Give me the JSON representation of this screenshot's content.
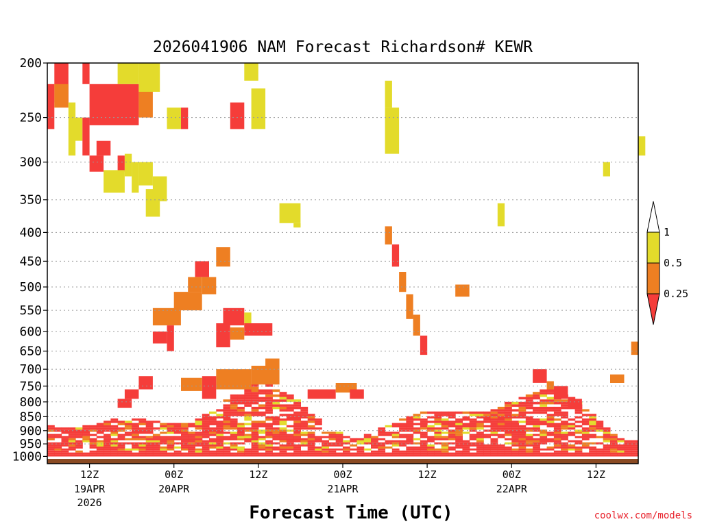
{
  "chart_data": {
    "type": "heatmap",
    "title": "2026041906 NAM Forecast Richardson# KEWR",
    "xlabel": "Forecast Time (UTC)",
    "ylabel": "",
    "y_unit": "hPa",
    "y_ticks": [
      200,
      250,
      300,
      350,
      400,
      450,
      500,
      550,
      600,
      650,
      700,
      750,
      800,
      850,
      900,
      950,
      1000
    ],
    "y_range": [
      200,
      1030
    ],
    "x_range_hours": [
      0,
      84
    ],
    "x_ticks": [
      {
        "hour": 6,
        "label": "12Z",
        "date": "19APR",
        "year": "2026"
      },
      {
        "hour": 18,
        "label": "00Z",
        "date": "20APR",
        "year": ""
      },
      {
        "hour": 30,
        "label": "12Z",
        "date": "",
        "year": ""
      },
      {
        "hour": 42,
        "label": "00Z",
        "date": "21APR",
        "year": ""
      },
      {
        "hour": 54,
        "label": "12Z",
        "date": "",
        "year": ""
      },
      {
        "hour": 66,
        "label": "00Z",
        "date": "22APR",
        "year": ""
      },
      {
        "hour": 78,
        "label": "12Z",
        "date": "",
        "year": ""
      }
    ],
    "legend": {
      "labels": [
        "1",
        "0.5",
        "0.25"
      ],
      "bins": [
        {
          "range": "> 1",
          "color": "#ffffff"
        },
        {
          "range": "0.5 - 1",
          "color": "#e3db2b"
        },
        {
          "range": "0.25 - 0.5",
          "color": "#ee7f22"
        },
        {
          "range": "< 0.25",
          "color": "#f53d3a"
        }
      ]
    },
    "ground_color": "#8a4a23",
    "cells": [
      {
        "t0": 1,
        "t1": 3,
        "p0": 200,
        "p1": 235,
        "bin": "low"
      },
      {
        "t0": 5,
        "t1": 6,
        "p0": 200,
        "p1": 218,
        "bin": "low"
      },
      {
        "t0": 0,
        "t1": 1,
        "p0": 218,
        "p1": 262,
        "bin": "low"
      },
      {
        "t0": 1,
        "t1": 3,
        "p0": 218,
        "p1": 240,
        "bin": "mid"
      },
      {
        "t0": 6,
        "t1": 13,
        "p0": 218,
        "p1": 258,
        "bin": "low"
      },
      {
        "t0": 3,
        "t1": 4,
        "p0": 235,
        "p1": 292,
        "bin": "hi"
      },
      {
        "t0": 4,
        "t1": 5,
        "p0": 250,
        "p1": 275,
        "bin": "hi"
      },
      {
        "t0": 5,
        "t1": 6,
        "p0": 250,
        "p1": 292,
        "bin": "low"
      },
      {
        "t0": 7,
        "t1": 9,
        "p0": 275,
        "p1": 292,
        "bin": "low"
      },
      {
        "t0": 6,
        "t1": 8,
        "p0": 292,
        "p1": 312,
        "bin": "low"
      },
      {
        "t0": 10,
        "t1": 11,
        "p0": 292,
        "p1": 312,
        "bin": "low"
      },
      {
        "t0": 10,
        "t1": 13,
        "p0": 200,
        "p1": 218,
        "bin": "hi"
      },
      {
        "t0": 13,
        "t1": 16,
        "p0": 200,
        "p1": 225,
        "bin": "hi"
      },
      {
        "t0": 13,
        "t1": 15,
        "p0": 225,
        "p1": 250,
        "bin": "mid"
      },
      {
        "t0": 17,
        "t1": 19,
        "p0": 240,
        "p1": 262,
        "bin": "hi"
      },
      {
        "t0": 19,
        "t1": 20,
        "p0": 240,
        "p1": 262,
        "bin": "low"
      },
      {
        "t0": 8,
        "t1": 11,
        "p0": 310,
        "p1": 340,
        "bin": "hi"
      },
      {
        "t0": 11,
        "t1": 12,
        "p0": 290,
        "p1": 318,
        "bin": "hi"
      },
      {
        "t0": 12,
        "t1": 13,
        "p0": 300,
        "p1": 340,
        "bin": "hi"
      },
      {
        "t0": 13,
        "t1": 15,
        "p0": 300,
        "p1": 330,
        "bin": "hi"
      },
      {
        "t0": 14,
        "t1": 16,
        "p0": 335,
        "p1": 375,
        "bin": "hi"
      },
      {
        "t0": 15,
        "t1": 17,
        "p0": 318,
        "p1": 352,
        "bin": "hi"
      },
      {
        "t0": 28,
        "t1": 30,
        "p0": 200,
        "p1": 215,
        "bin": "hi"
      },
      {
        "t0": 26,
        "t1": 28,
        "p0": 235,
        "p1": 262,
        "bin": "low"
      },
      {
        "t0": 29,
        "t1": 31,
        "p0": 222,
        "p1": 262,
        "bin": "hi"
      },
      {
        "t0": 33,
        "t1": 36,
        "p0": 355,
        "p1": 385,
        "bin": "hi"
      },
      {
        "t0": 35,
        "t1": 36,
        "p0": 385,
        "p1": 392,
        "bin": "hi"
      },
      {
        "t0": 48,
        "t1": 49,
        "p0": 215,
        "p1": 240,
        "bin": "hi"
      },
      {
        "t0": 48,
        "t1": 50,
        "p0": 240,
        "p1": 290,
        "bin": "hi"
      },
      {
        "t0": 64,
        "t1": 65,
        "p0": 355,
        "p1": 390,
        "bin": "hi"
      },
      {
        "t0": 79,
        "t1": 80,
        "p0": 300,
        "p1": 318,
        "bin": "hi"
      },
      {
        "t0": 84,
        "t1": 85,
        "p0": 270,
        "p1": 292,
        "bin": "hi"
      },
      {
        "t0": 24,
        "t1": 26,
        "p0": 425,
        "p1": 460,
        "bin": "mid"
      },
      {
        "t0": 21,
        "t1": 23,
        "p0": 450,
        "p1": 480,
        "bin": "low"
      },
      {
        "t0": 20,
        "t1": 22,
        "p0": 480,
        "p1": 510,
        "bin": "mid"
      },
      {
        "t0": 22,
        "t1": 24,
        "p0": 480,
        "p1": 515,
        "bin": "mid"
      },
      {
        "t0": 18,
        "t1": 22,
        "p0": 510,
        "p1": 550,
        "bin": "mid"
      },
      {
        "t0": 15,
        "t1": 19,
        "p0": 545,
        "p1": 585,
        "bin": "mid"
      },
      {
        "t0": 25,
        "t1": 28,
        "p0": 545,
        "p1": 585,
        "bin": "low"
      },
      {
        "t0": 28,
        "t1": 29,
        "p0": 555,
        "p1": 590,
        "bin": "hi"
      },
      {
        "t0": 28,
        "t1": 32,
        "p0": 580,
        "p1": 610,
        "bin": "low"
      },
      {
        "t0": 15,
        "t1": 17,
        "p0": 600,
        "p1": 630,
        "bin": "low"
      },
      {
        "t0": 17,
        "t1": 18,
        "p0": 585,
        "p1": 650,
        "bin": "low"
      },
      {
        "t0": 24,
        "t1": 26,
        "p0": 580,
        "p1": 640,
        "bin": "low"
      },
      {
        "t0": 26,
        "t1": 28,
        "p0": 590,
        "p1": 620,
        "bin": "mid"
      },
      {
        "t0": 24,
        "t1": 29,
        "p0": 700,
        "p1": 760,
        "bin": "mid"
      },
      {
        "t0": 22,
        "t1": 24,
        "p0": 720,
        "p1": 790,
        "bin": "low"
      },
      {
        "t0": 19,
        "t1": 22,
        "p0": 725,
        "p1": 765,
        "bin": "mid"
      },
      {
        "t0": 29,
        "t1": 33,
        "p0": 690,
        "p1": 745,
        "bin": "mid"
      },
      {
        "t0": 31,
        "t1": 33,
        "p0": 670,
        "p1": 690,
        "bin": "mid"
      },
      {
        "t0": 13,
        "t1": 15,
        "p0": 720,
        "p1": 760,
        "bin": "low"
      },
      {
        "t0": 11,
        "t1": 13,
        "p0": 760,
        "p1": 790,
        "bin": "low"
      },
      {
        "t0": 10,
        "t1": 12,
        "p0": 790,
        "p1": 820,
        "bin": "low"
      },
      {
        "t0": 37,
        "t1": 41,
        "p0": 760,
        "p1": 790,
        "bin": "low"
      },
      {
        "t0": 41,
        "t1": 44,
        "p0": 740,
        "p1": 770,
        "bin": "mid"
      },
      {
        "t0": 43,
        "t1": 45,
        "p0": 760,
        "p1": 790,
        "bin": "low"
      },
      {
        "t0": 48,
        "t1": 49,
        "p0": 390,
        "p1": 420,
        "bin": "mid"
      },
      {
        "t0": 49,
        "t1": 50,
        "p0": 420,
        "p1": 460,
        "bin": "low"
      },
      {
        "t0": 50,
        "t1": 51,
        "p0": 470,
        "p1": 510,
        "bin": "mid"
      },
      {
        "t0": 51,
        "t1": 52,
        "p0": 515,
        "p1": 570,
        "bin": "mid"
      },
      {
        "t0": 52,
        "t1": 53,
        "p0": 560,
        "p1": 610,
        "bin": "mid"
      },
      {
        "t0": 53,
        "t1": 54,
        "p0": 610,
        "p1": 660,
        "bin": "low"
      },
      {
        "t0": 58,
        "t1": 60,
        "p0": 495,
        "p1": 520,
        "bin": "mid"
      },
      {
        "t0": 69,
        "t1": 71,
        "p0": 700,
        "p1": 740,
        "bin": "low"
      },
      {
        "t0": 71,
        "t1": 72,
        "p0": 735,
        "p1": 760,
        "bin": "mid"
      },
      {
        "t0": 72,
        "t1": 74,
        "p0": 750,
        "p1": 790,
        "bin": "low"
      },
      {
        "t0": 74,
        "t1": 76,
        "p0": 790,
        "p1": 820,
        "bin": "low"
      },
      {
        "t0": 80,
        "t1": 82,
        "p0": 715,
        "p1": 740,
        "bin": "mid"
      },
      {
        "t0": 83,
        "t1": 84,
        "p0": 625,
        "p1": 660,
        "bin": "mid"
      }
    ]
  },
  "credit": "coolwx.com/models"
}
